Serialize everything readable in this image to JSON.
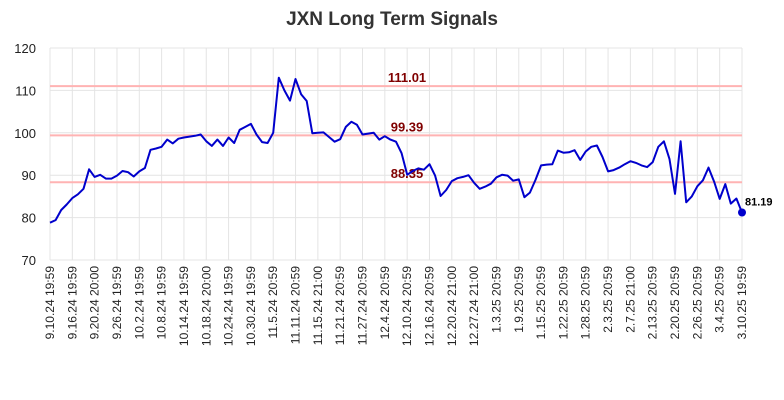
{
  "chart_data": {
    "type": "line",
    "title": "JXN Long Term Signals",
    "xlabel": "",
    "ylabel": "",
    "ylim": [
      70,
      120
    ],
    "yticks": [
      70,
      80,
      90,
      100,
      110,
      120
    ],
    "grid": true,
    "line_color": "#0000cc",
    "level_color": "#ffb3b3",
    "level_label_color": "#800000",
    "x_tick_labels": [
      "9.10.24 19:59",
      "9.16.24 19:59",
      "9.20.24 20:00",
      "9.26.24 19:59",
      "10.2.24 19:59",
      "10.8.24 19:59",
      "10.14.24 19:59",
      "10.18.24 20:00",
      "10.24.24 19:59",
      "10.30.24 19:59",
      "11.5.24 20:59",
      "11.11.24 20:59",
      "11.15.24 21:00",
      "11.21.24 20:59",
      "11.27.24 20:59",
      "12.4.24 20:59",
      "12.10.24 20:59",
      "12.16.24 20:59",
      "12.20.24 21:00",
      "12.27.24 21:00",
      "1.3.25 20:59",
      "1.9.25 20:59",
      "1.15.25 20:59",
      "1.22.25 20:59",
      "1.28.25 20:59",
      "2.3.25 20:59",
      "2.7.25 21:00",
      "2.13.25 20:59",
      "2.20.25 20:59",
      "2.26.25 20:59",
      "3.4.25 20:59",
      "3.10.25 19:59"
    ],
    "levels": [
      {
        "value": 111.01,
        "label": "111.01"
      },
      {
        "value": 99.39,
        "label": "99.39"
      },
      {
        "value": 88.35,
        "label": "88.35"
      }
    ],
    "last_label": "81.19",
    "values": [
      78.8,
      79.4,
      81.8,
      83.1,
      84.6,
      85.5,
      86.8,
      91.4,
      89.6,
      90.1,
      89.2,
      89.2,
      89.9,
      91.0,
      90.7,
      89.7,
      90.9,
      91.7,
      96.0,
      96.3,
      96.7,
      98.4,
      97.5,
      98.6,
      98.9,
      99.1,
      99.3,
      99.6,
      98.0,
      96.9,
      98.4,
      96.9,
      98.9,
      97.6,
      100.7,
      101.4,
      102.1,
      99.6,
      97.8,
      97.6,
      100.0,
      113.0,
      110.0,
      107.6,
      112.7,
      109.1,
      107.5,
      99.9,
      100.0,
      100.1,
      99.0,
      97.9,
      98.5,
      101.4,
      102.6,
      101.9,
      99.6,
      99.8,
      100.0,
      98.4,
      99.2,
      98.4,
      97.9,
      95.2,
      90.1,
      91.0,
      91.6,
      91.3,
      92.6,
      89.9,
      85.1,
      86.5,
      88.6,
      89.3,
      89.6,
      90.0,
      88.2,
      86.8,
      87.3,
      88.0,
      89.5,
      90.1,
      89.9,
      88.7,
      89.0,
      84.8,
      85.9,
      88.9,
      92.3,
      92.5,
      92.6,
      95.8,
      95.3,
      95.4,
      95.9,
      93.6,
      95.6,
      96.7,
      97.0,
      94.3,
      90.9,
      91.2,
      91.8,
      92.6,
      93.3,
      92.9,
      92.3,
      91.9,
      93.1,
      96.7,
      98.0,
      93.8,
      85.6,
      98.0,
      83.6,
      85.0,
      87.4,
      88.8,
      91.8,
      88.5,
      84.4,
      87.9,
      83.3,
      84.5,
      81.2
    ]
  }
}
